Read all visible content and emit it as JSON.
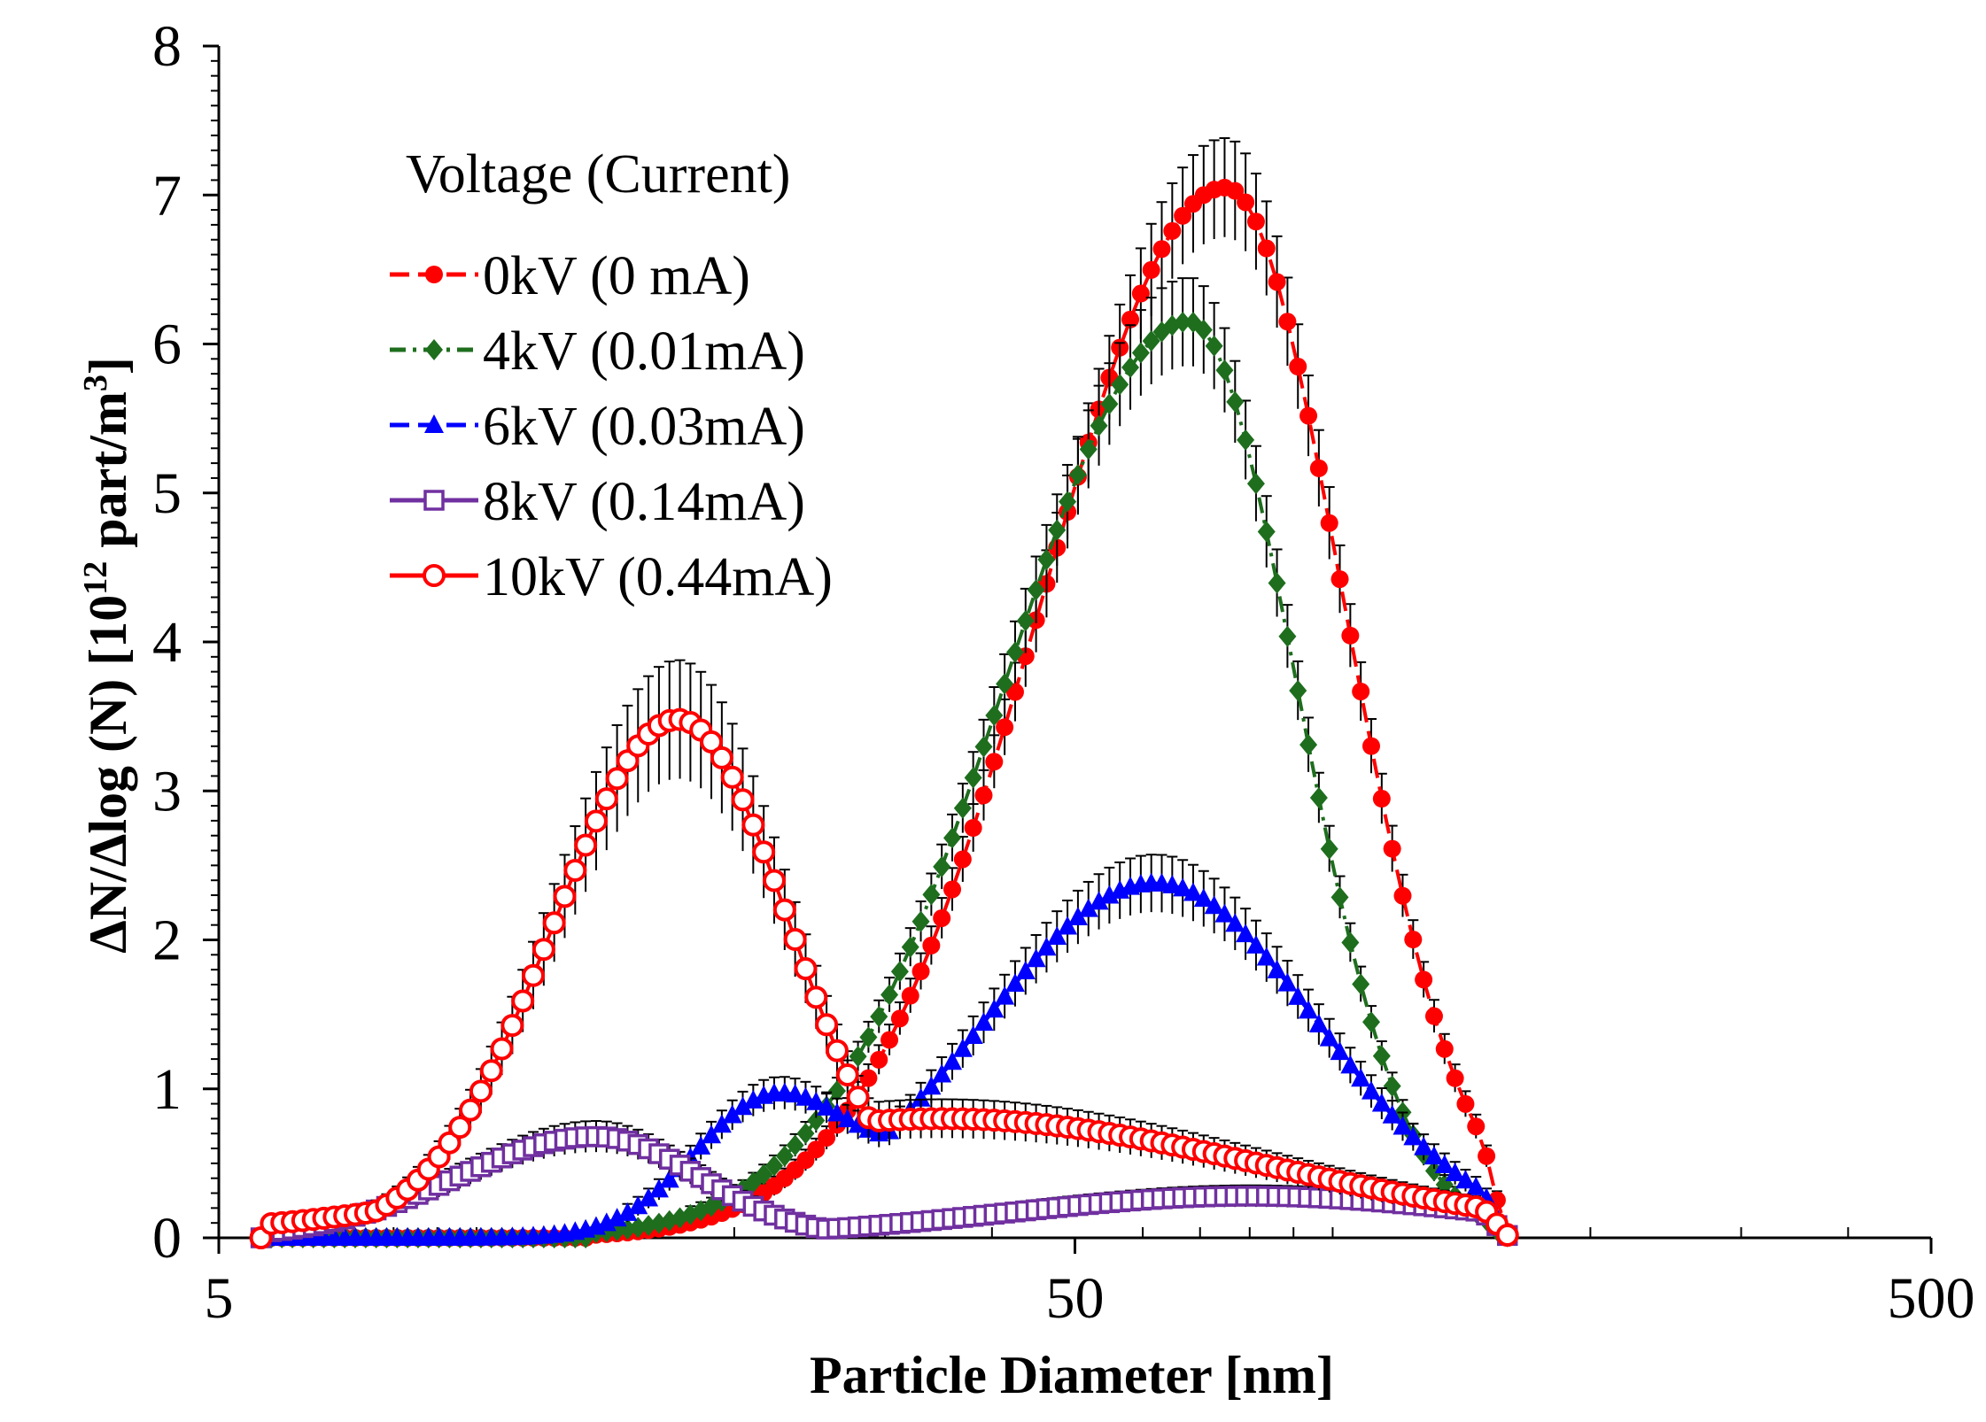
{
  "chart_data": {
    "type": "line",
    "title": "",
    "xlabel": "Particle Diameter [nm]",
    "ylabel_main": "ΔN/Δlog (N)  [10",
    "ylabel_sup1": "12",
    "ylabel_mid": " part/m",
    "ylabel_sup2": "3",
    "ylabel_end": "]",
    "xscale": "log",
    "xlim": [
      5,
      500
    ],
    "ylim": [
      0,
      8
    ],
    "x_ticks": [
      5,
      50,
      500
    ],
    "x_tick_labels": [
      "5",
      "50",
      "500"
    ],
    "y_ticks": [
      0,
      1,
      2,
      3,
      4,
      5,
      6,
      7,
      8
    ],
    "y_tick_labels": [
      "0",
      "1",
      "2",
      "3",
      "4",
      "5",
      "6",
      "7",
      "8"
    ],
    "legend_title": "Voltage (Current)",
    "legend_position": "top-left",
    "series": [
      {
        "name": "0kV (0 mA)",
        "color": "#ff0000",
        "marker": "filled-circle",
        "line": "dashed",
        "peak_x": 75,
        "peak_y": 7.05,
        "sigma_left": 0.215,
        "sigma_right": 0.138,
        "x_start": 13.5,
        "x_end": 160,
        "rel_err": 0.04
      },
      {
        "name": "4kV (0.01mA)",
        "color": "#1e6e1e",
        "marker": "filled-diamond",
        "line": "dash-dot",
        "peak_x": 68,
        "peak_y": 6.15,
        "sigma_left": 0.215,
        "sigma_right": 0.125,
        "x_start": 13.5,
        "x_end": 160,
        "rel_err": 0.04
      },
      {
        "name": "6kV (0.03mA)",
        "color": "#0000ff",
        "marker": "filled-triangle",
        "line": "dashed",
        "peak_x": 62,
        "peak_y": 2.38,
        "sigma_left": 0.2,
        "sigma_right": 0.19,
        "x_start": 5.6,
        "x_end": 160,
        "rel_err": 0.06,
        "shoulder_x": 22,
        "shoulder_y": 0.85,
        "shoulder_sigma": 0.09
      },
      {
        "name": "8kV (0.14mA)",
        "color": "#7030a0",
        "marker": "open-square",
        "line": "solid",
        "peak_x": 13.8,
        "peak_y": 0.68,
        "sigma_left": 0.16,
        "sigma_right": 0.12,
        "x_start": 5.6,
        "x_end": 160,
        "rel_err": 0.08,
        "tail_x": 80,
        "tail_y": 0.28,
        "tail_sigma": 0.28
      },
      {
        "name": "10kV (0.44mA)",
        "color": "#ff0000",
        "marker": "open-circle",
        "line": "solid",
        "peak_x": 17.2,
        "peak_y": 3.48,
        "sigma_left": 0.145,
        "sigma_right": 0.13,
        "x_start": 5.6,
        "x_end": 160,
        "rel_err": 0.1,
        "tail_x": 35,
        "tail_y": 0.8,
        "tail_sigma": 0.38
      }
    ]
  }
}
